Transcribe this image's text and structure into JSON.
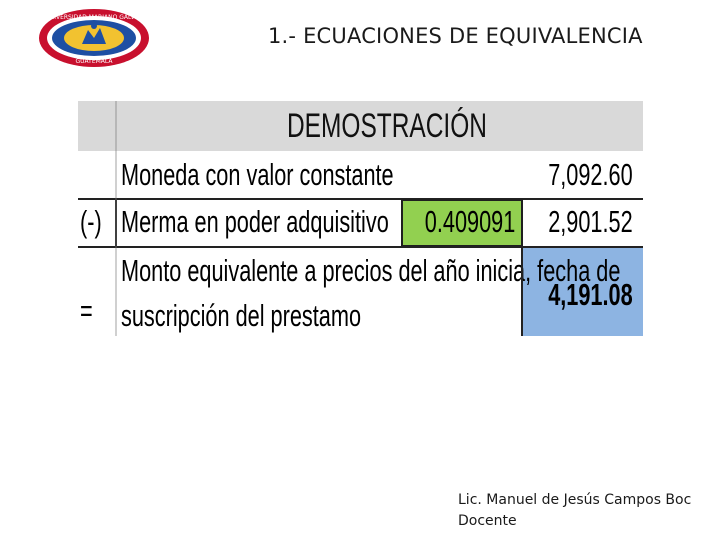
{
  "header": {
    "title": "1.- ECUACIONES DE EQUIVALENCIA",
    "logo_icon": "university-seal-icon",
    "logo_text_top": "UNIVERSIDAD MARIANO GALVEZ",
    "logo_text_bottom": "GUATEMALA"
  },
  "table": {
    "heading": "DEMOSTRACIÓN",
    "rows": [
      {
        "sign": "",
        "label": "Moneda con valor constante",
        "factor": "",
        "value": "7,092.60"
      },
      {
        "sign": "(-)",
        "label": "Merma en poder adquisitivo",
        "factor": "0.409091",
        "value": "2,901.52"
      },
      {
        "sign": "=",
        "label_line1": "Monto equivalente a precios del año inicia,  fecha de",
        "label_line2": "suscripción del prestamo",
        "value": "4,191.08"
      }
    ],
    "colors": {
      "heading_bg": "#d9d9d9",
      "factor_bg": "#92d050",
      "result_bg": "#8db4e2"
    }
  },
  "footer": {
    "line1": "Lic. Manuel de Jesús Campos  Boc",
    "line2": "Docente"
  }
}
